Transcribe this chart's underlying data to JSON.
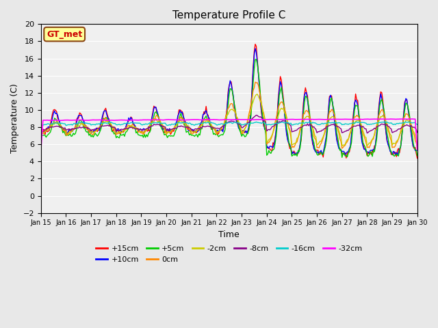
{
  "title": "Temperature Profile C",
  "xlabel": "Time",
  "ylabel": "Temperature (C)",
  "ylim": [
    -2,
    20
  ],
  "xlim": [
    0,
    360
  ],
  "bg_color": "#e8e8e8",
  "plot_bg_color": "#f0f0f0",
  "legend_label": "GT_met",
  "legend_bg": "#ffff99",
  "legend_border": "#8b4513",
  "series_colors": {
    "+15cm": "#ff0000",
    "+10cm": "#0000ff",
    "+5cm": "#00cc00",
    "0cm": "#ff8800",
    "-2cm": "#cccc00",
    "-8cm": "#880088",
    "-16cm": "#00cccc",
    "-32cm": "#ff00ff"
  },
  "x_tick_labels": [
    "Jan 15",
    "Jan 16",
    "Jan 17",
    "Jan 18",
    "Jan 19",
    "Jan 20",
    "Jan 21",
    "Jan 22",
    "Jan 23",
    "Jan 24",
    "Jan 25",
    "Jan 26",
    "Jan 27",
    "Jan 28",
    "Jan 29",
    "Jan 30"
  ],
  "x_tick_positions": [
    0,
    24,
    48,
    72,
    96,
    120,
    144,
    168,
    192,
    216,
    240,
    264,
    288,
    312,
    336,
    360
  ]
}
